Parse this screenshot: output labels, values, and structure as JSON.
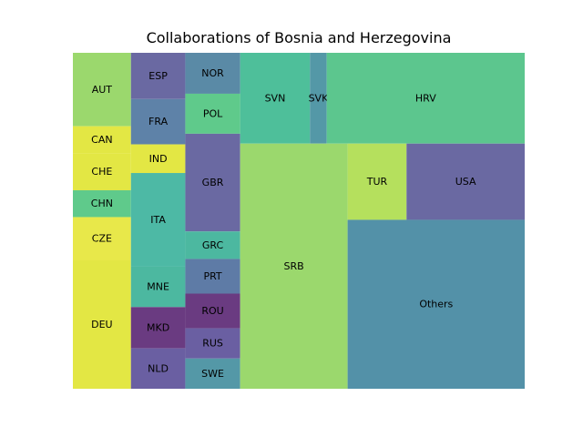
{
  "chart_data": {
    "type": "treemap",
    "title": "Collaborations of Bosnia and Herzegovina",
    "cells": [
      {
        "label": "AUT",
        "value": 50.9,
        "color": "#9bd86d"
      },
      {
        "label": "CAN",
        "value": 18.6,
        "color": "#e3e744"
      },
      {
        "label": "CHE",
        "value": 25.8,
        "color": "#e3e744"
      },
      {
        "label": "CHN",
        "value": 18.6,
        "color": "#5fca8b"
      },
      {
        "label": "CZE",
        "value": 30.0,
        "color": "#e8e84a"
      },
      {
        "label": "DEU",
        "value": 89.0,
        "color": "#e3e744"
      },
      {
        "label": "ESP",
        "value": 30.0,
        "color": "#6a69a2"
      },
      {
        "label": "FRA",
        "value": 29.4,
        "color": "#5e82a8"
      },
      {
        "label": "IND",
        "value": 18.6,
        "color": "#e3e744"
      },
      {
        "label": "ITA",
        "value": 60.8,
        "color": "#4db9a5"
      },
      {
        "label": "MNE",
        "value": 26.2,
        "color": "#4cb8a0"
      },
      {
        "label": "MKD",
        "value": 26.8,
        "color": "#6a3b81"
      },
      {
        "label": "NLD",
        "value": 26.2,
        "color": "#6a5fa2"
      },
      {
        "label": "NOR",
        "value": 26.8,
        "color": "#5a8aa6"
      },
      {
        "label": "POL",
        "value": 26.2,
        "color": "#5fca8b"
      },
      {
        "label": "GBR",
        "value": 64.0,
        "color": "#6a69a2"
      },
      {
        "label": "GRC",
        "value": 18.0,
        "color": "#4cb8a0"
      },
      {
        "label": "PRT",
        "value": 22.7,
        "color": "#5e7ba6"
      },
      {
        "label": "ROU",
        "value": 22.7,
        "color": "#6a3b81"
      },
      {
        "label": "RUS",
        "value": 19.8,
        "color": "#6a5fa2"
      },
      {
        "label": "SWE",
        "value": 19.8,
        "color": "#5498a7"
      },
      {
        "label": "SVN",
        "value": 75.6,
        "color": "#4ebf9a"
      },
      {
        "label": "SVK",
        "value": 18.2,
        "color": "#5498a7"
      },
      {
        "label": "HRV",
        "value": 214.6,
        "color": "#5cc68e"
      },
      {
        "label": "SRB",
        "value": 314.4,
        "color": "#9bd86d"
      },
      {
        "label": "TUR",
        "value": 53.6,
        "color": "#b5e05d"
      },
      {
        "label": "USA",
        "value": 107.5,
        "color": "#6a69a2"
      },
      {
        "label": "Others",
        "value": 357.1,
        "color": "#5391a8"
      }
    ]
  }
}
